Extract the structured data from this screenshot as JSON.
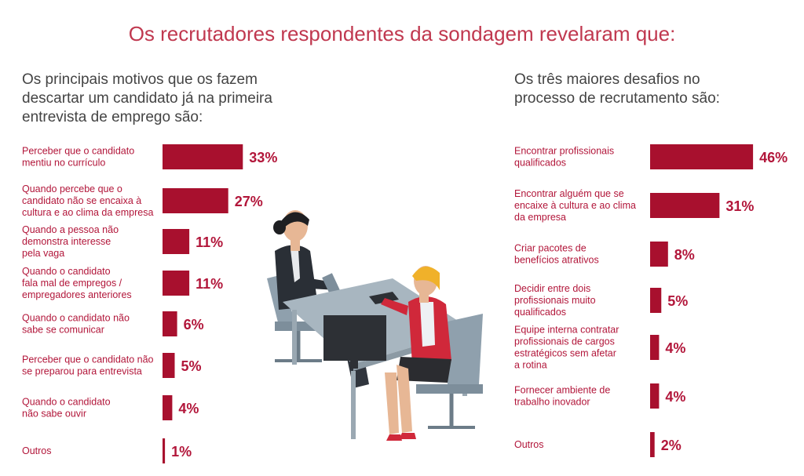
{
  "title": "Os recrutadores respondentes da sondagem revelaram que:",
  "left_subtitle": [
    "Os principais motivos que os fazem",
    "descartar um candidato já na primeira",
    "entrevista de emprego são:"
  ],
  "right_subtitle": [
    "Os três maiores desafios no",
    "processo de recrutamento são:"
  ],
  "colors": {
    "bar": "#a8102e",
    "label": "#b2163a",
    "title": "#c0384f"
  },
  "chart_data": [
    {
      "type": "bar",
      "orientation": "horizontal",
      "categories": [
        [
          "Perceber que o candidato",
          "mentiu no currículo"
        ],
        [
          "Quando percebe que o",
          "candidato não se encaixa à",
          "cultura e ao clima da empresa"
        ],
        [
          "Quando a pessoa  não",
          "demonstra interesse",
          "pela vaga"
        ],
        [
          "Quando o candidato",
          "fala mal de empregos /",
          "empregadores anteriores"
        ],
        [
          "Quando o candidato não",
          "sabe se comunicar"
        ],
        [
          "Perceber que o candidato não",
          "se preparou para entrevista"
        ],
        [
          "Quando o candidato",
          "não sabe ouvir"
        ],
        [
          "Outros"
        ]
      ],
      "values": [
        33,
        27,
        11,
        11,
        6,
        5,
        4,
        1
      ],
      "value_labels": [
        "33%",
        "27%",
        "11%",
        "11%",
        "6%",
        "5%",
        "4%",
        "1%"
      ],
      "unit": "%"
    },
    {
      "type": "bar",
      "orientation": "horizontal",
      "categories": [
        [
          "Encontrar profissionais",
          "qualificados"
        ],
        [
          "Encontrar alguém que se",
          "encaixe à cultura e ao clima",
          "da empresa"
        ],
        [
          "Criar pacotes de",
          "benefícios atrativos"
        ],
        [
          "Decidir entre dois",
          "profissionais muito",
          "qualificados"
        ],
        [
          "Equipe interna contratar",
          "profissionais de cargos",
          "estratégicos sem afetar",
          "a rotina"
        ],
        [
          "Fornecer ambiente de",
          "trabalho inovador"
        ],
        [
          "Outros"
        ]
      ],
      "values": [
        46,
        31,
        8,
        5,
        4,
        4,
        2
      ],
      "value_labels": [
        "46%",
        "31%",
        "8%",
        "5%",
        "4%",
        "4%",
        "2%"
      ],
      "unit": "%"
    }
  ]
}
